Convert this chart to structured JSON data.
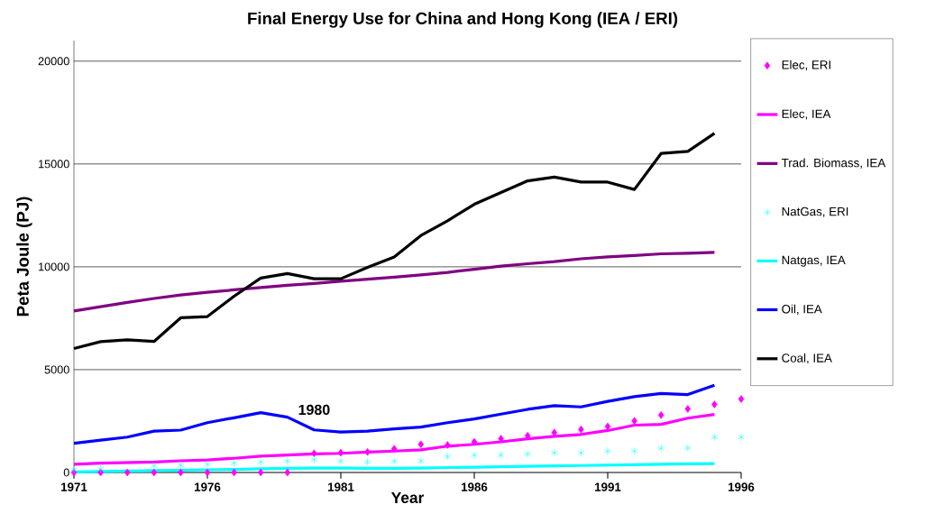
{
  "chart_data": {
    "type": "line",
    "title": "Final Energy Use for China and Hong Kong (IEA / ERI)",
    "xlabel": "Year",
    "ylabel": "Peta Joule (PJ)",
    "x": [
      1971,
      1972,
      1973,
      1974,
      1975,
      1976,
      1977,
      1978,
      1979,
      1980,
      1981,
      1982,
      1983,
      1984,
      1985,
      1986,
      1987,
      1988,
      1989,
      1990,
      1991,
      1992,
      1993,
      1994,
      1995,
      1996
    ],
    "series": [
      {
        "name": "Elec, ERI",
        "type": "scatter",
        "marker": "diamond",
        "color": "#ff00ff",
        "values": [
          0,
          0,
          0,
          0,
          0,
          0,
          0,
          0,
          0,
          930,
          960,
          1000,
          1150,
          1370,
          1340,
          1490,
          1640,
          1790,
          1940,
          2090,
          2240,
          2510,
          2790,
          3090,
          3310,
          3570
        ]
      },
      {
        "name": "Elec, IEA",
        "color": "#ff00ff",
        "values": [
          400,
          450,
          480,
          510,
          570,
          610,
          690,
          790,
          850,
          900,
          930,
          990,
          1040,
          1100,
          1280,
          1370,
          1490,
          1640,
          1760,
          1850,
          2040,
          2300,
          2340,
          2640,
          2820,
          null
        ]
      },
      {
        "name": "Trad. Biomass, IEA",
        "color": "#800080",
        "values": [
          7850,
          8060,
          8270,
          8460,
          8630,
          8760,
          8880,
          8990,
          9100,
          9190,
          9300,
          9400,
          9500,
          9610,
          9730,
          9880,
          10030,
          10150,
          10250,
          10390,
          10480,
          10550,
          10630,
          10660,
          10700,
          null
        ]
      },
      {
        "name": "NatGas, ERI",
        "type": "scatter",
        "marker": "cross",
        "color": "#00ffff",
        "values": [
          130,
          180,
          null,
          330,
          360,
          400,
          450,
          510,
          550,
          630,
          550,
          510,
          550,
          550,
          780,
          850,
          850,
          900,
          960,
          960,
          1040,
          1040,
          1180,
          1190,
          1720,
          1720
        ]
      },
      {
        "name": "Natgas, IEA",
        "color": "#00ffff",
        "values": [
          30,
          50,
          70,
          90,
          110,
          130,
          150,
          180,
          200,
          210,
          210,
          200,
          200,
          210,
          240,
          260,
          280,
          300,
          320,
          340,
          360,
          380,
          400,
          420,
          430,
          null
        ]
      },
      {
        "name": "Oil, IEA",
        "color": "#0000ff",
        "values": [
          1420,
          1570,
          1720,
          2010,
          2060,
          2420,
          2660,
          2910,
          2690,
          2070,
          1970,
          2010,
          2120,
          2210,
          2420,
          2600,
          2840,
          3070,
          3250,
          3190,
          3460,
          3690,
          3840,
          3790,
          4240,
          null
        ]
      },
      {
        "name": "Coal, IEA",
        "color": "#000000",
        "values": [
          6030,
          6360,
          6450,
          6370,
          7520,
          7580,
          8570,
          9450,
          9670,
          9420,
          9420,
          9970,
          10480,
          11520,
          12240,
          13040,
          13610,
          14180,
          14360,
          14120,
          14120,
          13760,
          15510,
          15610,
          16490,
          null
        ]
      }
    ],
    "annotations": [
      {
        "text": "1980",
        "x": 1980,
        "y": 2070
      }
    ],
    "xlim": [
      1971,
      1996
    ],
    "xticks": [
      1971,
      1976,
      1981,
      1986,
      1991,
      1996
    ],
    "ylim": [
      0,
      21000
    ],
    "yticks": [
      0,
      5000,
      10000,
      15000,
      20000
    ],
    "grid": "y",
    "legend": "right",
    "line_style": "solid"
  }
}
